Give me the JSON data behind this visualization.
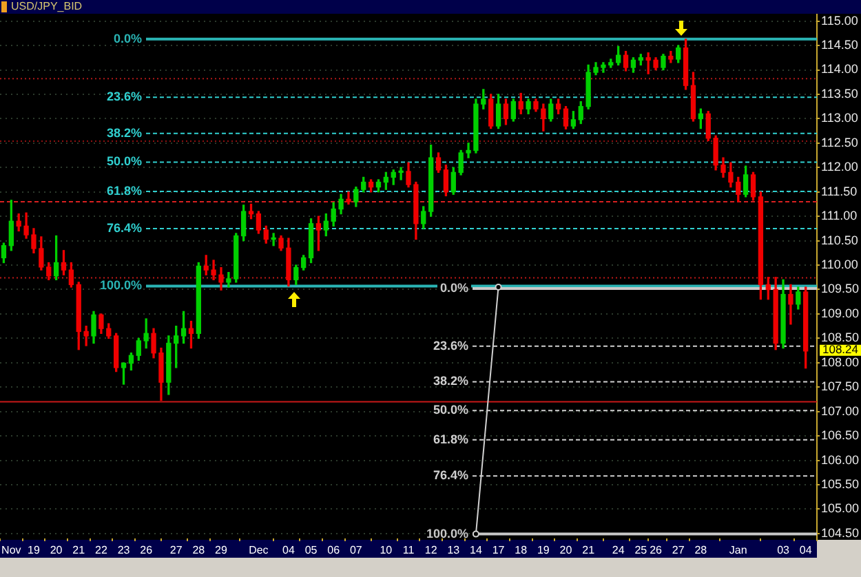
{
  "chart_data": {
    "type": "candlestick",
    "title": "USD/JPY_BID",
    "categories": [
      null,
      "Nov",
      null,
      null,
      "19",
      null,
      null,
      "20",
      null,
      null,
      "21",
      null,
      null,
      "22",
      null,
      null,
      "23",
      null,
      null,
      "26",
      null,
      null,
      null,
      "27",
      null,
      null,
      "28",
      null,
      null,
      "29",
      null,
      null,
      null,
      null,
      "Dec",
      null,
      null,
      null,
      "04",
      null,
      null,
      "05",
      null,
      null,
      "06",
      null,
      null,
      "07",
      null,
      null,
      null,
      "10",
      null,
      null,
      "11",
      null,
      null,
      "12",
      null,
      null,
      "13",
      null,
      null,
      "14",
      null,
      null,
      "17",
      null,
      null,
      "18",
      null,
      null,
      "19",
      null,
      null,
      "20",
      null,
      null,
      "21",
      null,
      null,
      null,
      "24",
      null,
      null,
      "25",
      null,
      "26",
      null,
      null,
      "27",
      null,
      null,
      "28",
      null,
      null,
      null,
      null,
      "Jan",
      null,
      null,
      null,
      null,
      null,
      "03",
      null,
      null,
      "04"
    ],
    "ohlc": [
      [
        110.15,
        110.45,
        110.05,
        110.4
      ],
      [
        110.4,
        111.33,
        110.3,
        110.9
      ],
      [
        110.9,
        111.05,
        110.7,
        110.8
      ],
      [
        110.8,
        111.07,
        110.55,
        110.62
      ],
      [
        110.62,
        110.75,
        110.25,
        110.34
      ],
      [
        110.34,
        110.58,
        109.9,
        109.96
      ],
      [
        109.96,
        110.05,
        109.7,
        109.78
      ],
      [
        109.78,
        110.6,
        109.7,
        110.05
      ],
      [
        110.05,
        110.3,
        109.8,
        109.9
      ],
      [
        109.9,
        110.05,
        109.55,
        109.6
      ],
      [
        109.6,
        109.65,
        108.27,
        108.64
      ],
      [
        108.64,
        108.75,
        108.35,
        108.55
      ],
      [
        108.55,
        109.05,
        108.4,
        108.98
      ],
      [
        108.98,
        109,
        108.6,
        108.7
      ],
      [
        108.7,
        108.8,
        108.5,
        108.55
      ],
      [
        108.55,
        108.6,
        107.82,
        107.9
      ],
      [
        107.9,
        108,
        107.56,
        107.99
      ],
      [
        107.99,
        108.2,
        107.85,
        108.15
      ],
      [
        108.15,
        108.5,
        108.05,
        108.45
      ],
      [
        108.45,
        108.9,
        108.3,
        108.6
      ],
      [
        108.6,
        108.7,
        108.1,
        108.2
      ],
      [
        108.2,
        108.3,
        107.23,
        107.6
      ],
      [
        107.6,
        108.55,
        107.35,
        108.4
      ],
      [
        108.4,
        108.75,
        107.9,
        108.55
      ],
      [
        108.55,
        109.05,
        108.4,
        108.7
      ],
      [
        108.7,
        108.85,
        108.3,
        108.6
      ],
      [
        108.6,
        110.05,
        108.5,
        109.98
      ],
      [
        109.98,
        110.2,
        109.8,
        109.9
      ],
      [
        109.9,
        110.1,
        109.7,
        109.8
      ],
      [
        109.8,
        109.95,
        109.49,
        109.65
      ],
      [
        109.65,
        109.85,
        109.55,
        109.72
      ],
      [
        109.72,
        110.65,
        109.65,
        110.6
      ],
      [
        110.6,
        111.23,
        110.5,
        111.1
      ],
      [
        111.1,
        111.25,
        110.95,
        111.05
      ],
      [
        111.05,
        111.1,
        110.65,
        110.72
      ],
      [
        110.72,
        110.8,
        110.45,
        110.53
      ],
      [
        110.53,
        110.65,
        110.4,
        110.55
      ],
      [
        110.55,
        110.6,
        110.3,
        110.35
      ],
      [
        110.35,
        110.55,
        109.57,
        109.7
      ],
      [
        109.7,
        110,
        109.6,
        109.95
      ],
      [
        109.95,
        110.2,
        109.9,
        110.15
      ],
      [
        110.15,
        110.95,
        110.05,
        110.85
      ],
      [
        110.85,
        111,
        110.3,
        110.72
      ],
      [
        110.72,
        111.05,
        110.6,
        110.9
      ],
      [
        110.9,
        111.28,
        110.8,
        111.15
      ],
      [
        111.15,
        111.45,
        111.05,
        111.35
      ],
      [
        111.35,
        111.5,
        111.25,
        111.3
      ],
      [
        111.3,
        111.6,
        111.2,
        111.55
      ],
      [
        111.55,
        111.8,
        111.5,
        111.7
      ],
      [
        111.7,
        111.75,
        111.5,
        111.6
      ],
      [
        111.6,
        111.75,
        111.5,
        111.7
      ],
      [
        111.7,
        111.9,
        111.55,
        111.8
      ],
      [
        111.8,
        111.95,
        111.65,
        111.9
      ],
      [
        111.9,
        112,
        111.75,
        111.92
      ],
      [
        111.92,
        112.1,
        111.6,
        111.65
      ],
      [
        111.65,
        111.7,
        110.53,
        110.85
      ],
      [
        110.85,
        111.2,
        110.75,
        111.1
      ],
      [
        111.1,
        112.46,
        111,
        112.2
      ],
      [
        112.2,
        112.3,
        111.9,
        111.95
      ],
      [
        111.95,
        112.05,
        111.42,
        111.5
      ],
      [
        111.5,
        112,
        111.45,
        111.9
      ],
      [
        111.9,
        112.35,
        111.85,
        112.3
      ],
      [
        112.3,
        112.5,
        112.2,
        112.35
      ],
      [
        112.35,
        113.4,
        112.3,
        113.3
      ],
      [
        113.3,
        113.6,
        113.2,
        113.4
      ],
      [
        113.4,
        113.5,
        112.8,
        112.85
      ],
      [
        112.85,
        113.5,
        112.8,
        113.3
      ],
      [
        113.3,
        113.4,
        112.88,
        113
      ],
      [
        113,
        113.4,
        112.95,
        113.35
      ],
      [
        113.35,
        113.52,
        113.1,
        113.2
      ],
      [
        113.2,
        113.4,
        113.1,
        113.35
      ],
      [
        113.35,
        113.4,
        113.15,
        113.2
      ],
      [
        113.2,
        113.3,
        112.75,
        113
      ],
      [
        113,
        113.4,
        112.95,
        113.3
      ],
      [
        113.3,
        113.4,
        113.1,
        113.2
      ],
      [
        113.2,
        113.25,
        112.79,
        112.85
      ],
      [
        112.85,
        113.15,
        112.8,
        112.98
      ],
      [
        112.98,
        113.35,
        112.9,
        113.25
      ],
      [
        113.25,
        114.1,
        113.2,
        113.95
      ],
      [
        113.95,
        114.15,
        113.9,
        114.05
      ],
      [
        114.05,
        114.15,
        113.95,
        114.1
      ],
      [
        114.1,
        114.22,
        114.05,
        114.15
      ],
      [
        114.15,
        114.48,
        114.1,
        114.3
      ],
      [
        114.3,
        114.38,
        113.98,
        114.05
      ],
      [
        114.05,
        114.25,
        113.95,
        114.2
      ],
      [
        114.2,
        114.32,
        114.1,
        114.25
      ],
      [
        114.25,
        114.35,
        113.92,
        114.2
      ],
      [
        114.2,
        114.25,
        114,
        114.05
      ],
      [
        114.05,
        114.32,
        114,
        114.28
      ],
      [
        114.28,
        114.38,
        114.15,
        114.22
      ],
      [
        114.22,
        114.5,
        114.15,
        114.45
      ],
      [
        114.45,
        114.63,
        113.6,
        113.68
      ],
      [
        113.68,
        113.95,
        112.95,
        113
      ],
      [
        113,
        113.2,
        112.8,
        113.1
      ],
      [
        113.1,
        113.15,
        112.55,
        112.6
      ],
      [
        112.6,
        112.65,
        111.95,
        112.05
      ],
      [
        112.05,
        112.2,
        111.8,
        111.9
      ],
      [
        111.9,
        112.1,
        111.6,
        111.7
      ],
      [
        111.7,
        111.8,
        111.3,
        111.45
      ],
      [
        111.45,
        112.03,
        111.4,
        111.85
      ],
      [
        111.85,
        111.9,
        111.33,
        111.4
      ],
      [
        111.4,
        111.5,
        109.3,
        109.6
      ],
      [
        109.6,
        109.75,
        109.3,
        109.5
      ],
      [
        109.5,
        109.75,
        108.27,
        108.4
      ],
      [
        108.4,
        109.7,
        108.3,
        109.4
      ],
      [
        109.4,
        109.6,
        108.79,
        109.2
      ],
      [
        109.2,
        109.55,
        109.1,
        109.45
      ],
      [
        109.45,
        109.55,
        107.89,
        108.24
      ]
    ],
    "colors": [
      "#00d000",
      "#00d000",
      "#f00000",
      "#f00000",
      "#f00000",
      "#f00000",
      "#f00000",
      "#00d000",
      "#f00000",
      "#f00000",
      "#f00000",
      "#f00000",
      "#00d000",
      "#f00000",
      "#f00000",
      "#f00000",
      "#00d000",
      "#00d000",
      "#00d000",
      "#00d000",
      "#f00000",
      "#f00000",
      "#00d000",
      "#00d000",
      "#00d000",
      "#f00000",
      "#00d000",
      "#f00000",
      "#f00000",
      "#f00000",
      "#00d000",
      "#00d000",
      "#00d000",
      "#f00000",
      "#f00000",
      "#f00000",
      "#00d000",
      "#f00000",
      "#f00000",
      "#00d000",
      "#00d000",
      "#00d000",
      "#f00000",
      "#00d000",
      "#00d000",
      "#00d000",
      "#f00000",
      "#00d000",
      "#00d000",
      "#f00000",
      "#00d000",
      "#00d000",
      "#00d000",
      "#00d000",
      "#f00000",
      "#f00000",
      "#00d000",
      "#00d000",
      "#f00000",
      "#f00000",
      "#00d000",
      "#00d000",
      "#00d000",
      "#00d000",
      "#00d000",
      "#f00000",
      "#00d000",
      "#f00000",
      "#00d000",
      "#f00000",
      "#00d000",
      "#f00000",
      "#f00000",
      "#00d000",
      "#f00000",
      "#f00000",
      "#00d000",
      "#00d000",
      "#00d000",
      "#00d000",
      "#00d000",
      "#00d000",
      "#00d000",
      "#f00000",
      "#00d000",
      "#00d000",
      "#f00000",
      "#f00000",
      "#00d000",
      "#f00000",
      "#00d000",
      "#f00000",
      "#f00000",
      "#00d000",
      "#f00000",
      "#f00000",
      "#f00000",
      "#f00000",
      "#f00000",
      "#00d000",
      "#f00000",
      "#f00000",
      "#f00000",
      "#f00000",
      "#00d000",
      "#f00000",
      "#00d000",
      "#f00000"
    ],
    "series": [
      {
        "type": "line",
        "x": [
          "14",
          "17"
        ],
        "values": [
          104.49,
          109.55
        ],
        "color": "#d0d0d0",
        "marker": "circle"
      }
    ],
    "ylim": [
      104.4,
      115.15
    ],
    "yticks": [
      {
        "value": 104.5,
        "label": "104.50"
      },
      {
        "value": 105,
        "label": "105.00"
      },
      {
        "value": 105.5,
        "label": "105.50"
      },
      {
        "value": 106,
        "label": "106.00"
      },
      {
        "value": 106.5,
        "label": "106.50"
      },
      {
        "value": 107,
        "label": "107.00"
      },
      {
        "value": 107.5,
        "label": "107.50"
      },
      {
        "value": 108,
        "label": "108.00"
      },
      {
        "value": 108.5,
        "label": "108.50"
      },
      {
        "value": 109,
        "label": "109.00"
      },
      {
        "value": 109.5,
        "label": "109.50"
      },
      {
        "value": 110,
        "label": "110.00"
      },
      {
        "value": 110.5,
        "label": "110.50"
      },
      {
        "value": 111,
        "label": "111.00"
      },
      {
        "value": 111.5,
        "label": "111.50"
      },
      {
        "value": 112,
        "label": "112.00"
      },
      {
        "value": 112.5,
        "label": "112.50"
      },
      {
        "value": 113,
        "label": "113.00"
      },
      {
        "value": 113.5,
        "label": "113.50"
      },
      {
        "value": 114,
        "label": "114.00"
      },
      {
        "value": 114.5,
        "label": "114.50"
      },
      {
        "value": 115,
        "label": "115.00"
      }
    ],
    "grid": "y",
    "ref_lines": [
      {
        "axis": "y",
        "value": 114.63,
        "color": "#2ab4b4",
        "line_style": "solid"
      },
      {
        "axis": "y",
        "value": 113.44,
        "color": "#30d0d0",
        "line_style": "dashed"
      },
      {
        "axis": "y",
        "value": 112.7,
        "color": "#30d0d0",
        "line_style": "dashed"
      },
      {
        "axis": "y",
        "value": 112.11,
        "color": "#30d0d0",
        "line_style": "dashed"
      },
      {
        "axis": "y",
        "value": 111.51,
        "color": "#30d0d0",
        "line_style": "dashed"
      },
      {
        "axis": "y",
        "value": 110.75,
        "color": "#30d0d0",
        "line_style": "dashed"
      },
      {
        "axis": "y",
        "value": 109.57,
        "color": "#2ab4b4",
        "line_style": "solid"
      },
      {
        "axis": "y",
        "value": 109.52,
        "color": "#c8c8c8",
        "line_style": "solid"
      },
      {
        "axis": "y",
        "value": 108.34,
        "color": "#d0d0d0",
        "line_style": "dashed"
      },
      {
        "axis": "y",
        "value": 107.61,
        "color": "#d0d0d0",
        "line_style": "dashed"
      },
      {
        "axis": "y",
        "value": 107.02,
        "color": "#d0d0d0",
        "line_style": "dashed"
      },
      {
        "axis": "y",
        "value": 106.42,
        "color": "#d0d0d0",
        "line_style": "dashed"
      },
      {
        "axis": "y",
        "value": 105.68,
        "color": "#d0d0d0",
        "line_style": "dashed"
      },
      {
        "axis": "y",
        "value": 104.49,
        "color": "#c8c8c8",
        "line_style": "solid"
      },
      {
        "axis": "y",
        "value": 113.82,
        "color": "#b01818",
        "line_style": "dotted"
      },
      {
        "axis": "y",
        "value": 112.54,
        "color": "#901010",
        "line_style": "dotted"
      },
      {
        "axis": "y",
        "value": 111.3,
        "color": "#d82020",
        "line_style": "dashed"
      },
      {
        "axis": "y",
        "value": 109.74,
        "color": "#c01818",
        "line_style": "dotted"
      },
      {
        "axis": "y",
        "value": 107.2,
        "color": "#c81818",
        "line_style": "solid"
      }
    ],
    "annotations": [
      "0.0%",
      "23.6%",
      "38.2%",
      "50.0%",
      "61.8%",
      "76.4%",
      "100.0%",
      "0.0%",
      "23.6%",
      "38.2%",
      "50.0%",
      "61.8%",
      "76.4%",
      "100.0%",
      "108.24"
    ]
  }
}
